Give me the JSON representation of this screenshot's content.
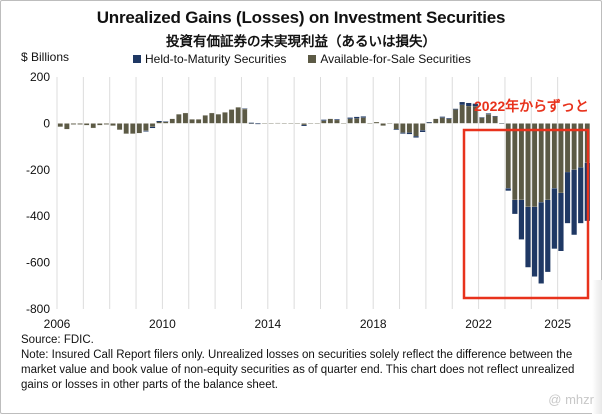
{
  "chart_data": {
    "type": "bar",
    "stacked": true,
    "title": "Unrealized Gains (Losses) on Investment Securities",
    "subtitle": "投資有価証券の未実現利益（あるいは損失）",
    "ylabel": "$ Billions",
    "xlabel": "",
    "ylim": [
      -800,
      200
    ],
    "yticks": [
      200,
      0,
      -200,
      -400,
      -600,
      -800
    ],
    "xlim": [
      2006,
      2025.5
    ],
    "xticks": [
      "2006",
      "2010",
      "2014",
      "2018",
      "2022",
      "2025"
    ],
    "xtick_values": [
      2006,
      2010,
      2014,
      2018,
      2022,
      2025
    ],
    "grid": "vertical-yearly",
    "legend_position": "top",
    "frequency": "quarterly",
    "start": 2006.0,
    "series": [
      {
        "name": "Held-to-Maturity Securities",
        "color": "#1f3864",
        "values": [
          0,
          0,
          0,
          0,
          0,
          0,
          0,
          0,
          0,
          0,
          0,
          0,
          0,
          -3,
          -5,
          -4,
          -2,
          0,
          0,
          0,
          0,
          0,
          0,
          0,
          0,
          0,
          0,
          0,
          2,
          3,
          3,
          0,
          0,
          0,
          0,
          0,
          0,
          -4,
          0,
          0,
          4,
          0,
          3,
          0,
          5,
          6,
          5,
          0,
          0,
          0,
          0,
          -3,
          -4,
          -6,
          -6,
          -7,
          -3,
          0,
          4,
          3,
          3,
          12,
          13,
          11,
          2,
          3,
          2,
          -1,
          -10,
          -60,
          -170,
          -260,
          -300,
          -350,
          -310,
          -260,
          -250,
          -220,
          -280,
          -240,
          -250
        ]
      },
      {
        "name": "Available-for-Sale Securities",
        "color": "#5c5a45",
        "values": [
          -15,
          -25,
          -5,
          -5,
          -8,
          -20,
          -8,
          -5,
          -10,
          -28,
          -45,
          -45,
          -42,
          -32,
          -15,
          10,
          8,
          20,
          40,
          45,
          18,
          18,
          35,
          45,
          40,
          48,
          60,
          70,
          62,
          0,
          -3,
          0,
          0,
          2,
          0,
          0,
          0,
          -7,
          0,
          0,
          12,
          20,
          15,
          0,
          20,
          22,
          25,
          0,
          6,
          -10,
          0,
          -25,
          -40,
          -40,
          -55,
          -30,
          5,
          20,
          25,
          20,
          60,
          80,
          75,
          74,
          25,
          40,
          30,
          0,
          -280,
          -330,
          -330,
          -360,
          -360,
          -340,
          -330,
          -280,
          -300,
          -210,
          -200,
          -190,
          -170
        ]
      }
    ]
  },
  "legend": {
    "htm_label": "Held-to-Maturity Securities",
    "afs_label": "Available-for-Sale Securities",
    "htm_color": "#1f3864",
    "afs_color": "#5c5a45"
  },
  "annotation": {
    "text": "2022年からずっと",
    "color": "#e8321c"
  },
  "footer": {
    "source": "Source: FDIC.",
    "note": "Note: Insured Call Report filers only. Unrealized losses on securities solely reflect the difference between the market value and book value of non-equity securities as of quarter end. This chart does not reflect unrealized gains or losses in other parts of the balance sheet."
  },
  "watermark": "@ mhzr"
}
